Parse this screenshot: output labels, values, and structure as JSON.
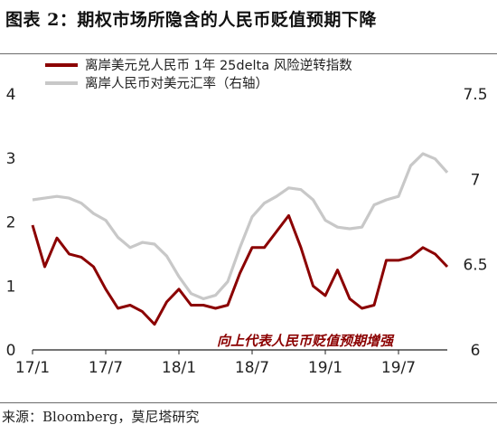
{
  "title": "图表 2：期权市场所隐含的人民币贬值预期下降",
  "source": "来源：Bloomberg，莫尼塔研究",
  "chart_data": {
    "type": "line",
    "title": "",
    "annotation": "向上代表人民币贬值预期增强",
    "x_ticks": [
      "17/1",
      "17/7",
      "18/1",
      "18/7",
      "19/1",
      "19/7"
    ],
    "y_left": {
      "ticks": [
        "0",
        "1",
        "2",
        "3",
        "4"
      ],
      "lim": [
        0,
        4
      ]
    },
    "y_right": {
      "ticks": [
        "6",
        "6.5",
        "7",
        "7.5"
      ],
      "lim": [
        6,
        7.5
      ]
    },
    "x_range": [
      "2017-01",
      "2019-11"
    ],
    "legend_position": "top-center",
    "series": [
      {
        "name": "离岸美元兑人民币 1年 25delta 风险逆转指数",
        "axis": "left",
        "color": "#8b0000",
        "x": [
          "2017-01",
          "2017-02",
          "2017-03",
          "2017-04",
          "2017-05",
          "2017-06",
          "2017-07",
          "2017-08",
          "2017-09",
          "2017-10",
          "2017-11",
          "2017-12",
          "2018-01",
          "2018-02",
          "2018-03",
          "2018-04",
          "2018-05",
          "2018-06",
          "2018-07",
          "2018-08",
          "2018-09",
          "2018-10",
          "2018-11",
          "2018-12",
          "2019-01",
          "2019-02",
          "2019-03",
          "2019-04",
          "2019-05",
          "2019-06",
          "2019-07",
          "2019-08",
          "2019-09",
          "2019-10",
          "2019-11"
        ],
        "values": [
          1.95,
          1.3,
          1.75,
          1.5,
          1.45,
          1.3,
          0.95,
          0.65,
          0.7,
          0.6,
          0.4,
          0.75,
          0.95,
          0.7,
          0.7,
          0.65,
          0.7,
          1.2,
          1.6,
          1.6,
          1.85,
          2.1,
          1.6,
          1.0,
          0.85,
          1.25,
          0.8,
          0.65,
          0.7,
          1.4,
          1.4,
          1.45,
          1.6,
          1.5,
          1.3
        ]
      },
      {
        "name": "离岸人民币对美元汇率（右轴）",
        "axis": "right",
        "color": "#c8c8c8",
        "x": [
          "2017-01",
          "2017-02",
          "2017-03",
          "2017-04",
          "2017-05",
          "2017-06",
          "2017-07",
          "2017-08",
          "2017-09",
          "2017-10",
          "2017-11",
          "2017-12",
          "2018-01",
          "2018-02",
          "2018-03",
          "2018-04",
          "2018-05",
          "2018-06",
          "2018-07",
          "2018-08",
          "2018-09",
          "2018-10",
          "2018-11",
          "2018-12",
          "2019-01",
          "2019-02",
          "2019-03",
          "2019-04",
          "2019-05",
          "2019-06",
          "2019-07",
          "2019-08",
          "2019-09",
          "2019-10",
          "2019-11"
        ],
        "values": [
          6.88,
          6.89,
          6.9,
          6.89,
          6.86,
          6.8,
          6.76,
          6.66,
          6.6,
          6.63,
          6.62,
          6.55,
          6.43,
          6.33,
          6.3,
          6.32,
          6.4,
          6.6,
          6.78,
          6.86,
          6.9,
          6.95,
          6.94,
          6.88,
          6.76,
          6.72,
          6.71,
          6.72,
          6.85,
          6.88,
          6.9,
          7.08,
          7.15,
          7.12,
          7.04
        ]
      }
    ]
  }
}
